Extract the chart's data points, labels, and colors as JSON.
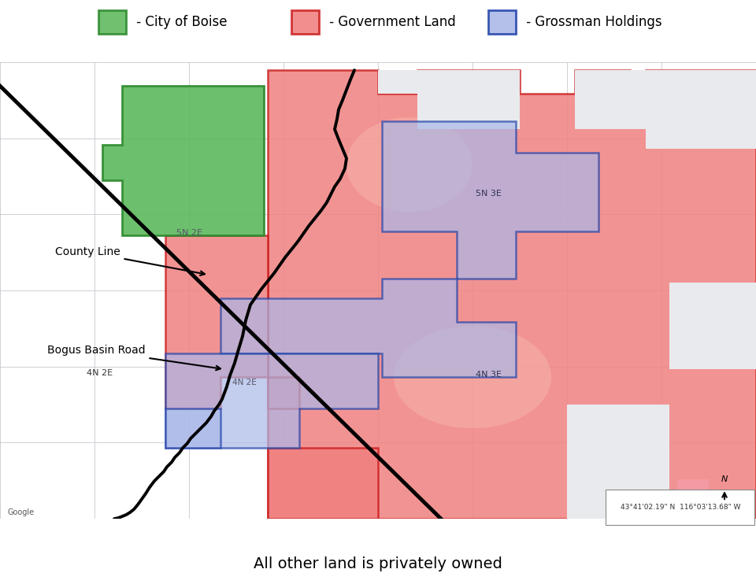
{
  "background_color": "#ffffff",
  "title_bottom": "All other land is privately owned",
  "title_fontsize": 14,
  "legend_items": [
    {
      "label": " - City of Boise",
      "color": "#5cb85c",
      "edge": "#2d8a2d"
    },
    {
      "label": " - Government Land",
      "color": "#f08080",
      "edge": "#cc2222"
    },
    {
      "label": " - Grossman Holdings",
      "color": "#a0b4e0",
      "edge": "#3355aa"
    }
  ],
  "county_line_label": "County Line",
  "bogus_basin_label": "Bogus Basin Road",
  "bogus_basin_sublabel": "4N 2E",
  "label_5n2e": "5N 2E",
  "label_5n3e": "5N 3E",
  "label_4n3e": "4N 3E",
  "coord_label": "43°41'02.19\" N  116°03'13.68\" W",
  "gov_color": "#f08080",
  "gov_edge": "#cc2222",
  "gov_alpha": 0.85,
  "city_color": "#5cb85c",
  "city_edge": "#2d8a2d",
  "city_alpha": 0.9,
  "gross_color": "#aab8e8",
  "gross_edge": "#2244aa",
  "gross_alpha": 0.7
}
